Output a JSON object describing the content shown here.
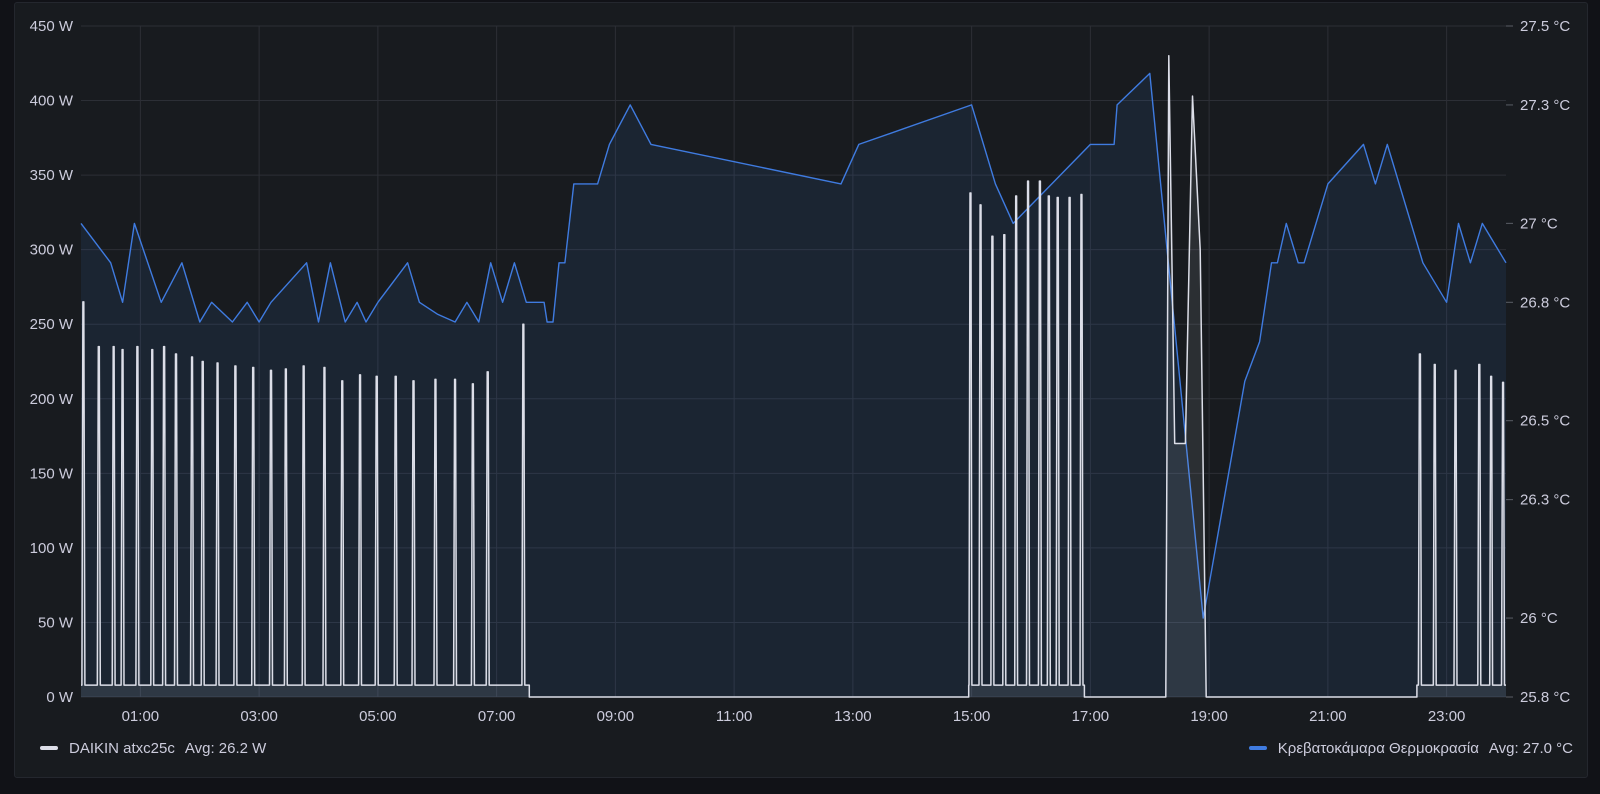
{
  "chart_data": {
    "type": "line",
    "x_axis": {
      "min": "00:00",
      "max": "24:00",
      "ticks": [
        "01:00",
        "03:00",
        "05:00",
        "07:00",
        "09:00",
        "11:00",
        "13:00",
        "15:00",
        "17:00",
        "19:00",
        "21:00",
        "23:00"
      ]
    },
    "y_left": {
      "unit": "W",
      "min": 0,
      "max": 450,
      "ticks": [
        "0 W",
        "50 W",
        "100 W",
        "150 W",
        "200 W",
        "250 W",
        "300 W",
        "350 W",
        "400 W",
        "450 W"
      ]
    },
    "y_right": {
      "unit": "°C",
      "min": 25.8,
      "max": 27.5,
      "ticks": [
        "25.8 °C",
        "26 °C",
        "26.3 °C",
        "26.5 °C",
        "26.8 °C",
        "27 °C",
        "27.3 °C",
        "27.5 °C"
      ]
    },
    "grid": true,
    "series": [
      {
        "name": "DAIKIN atxc25c",
        "axis": "left",
        "color": "#dcdee8",
        "style": "cycling",
        "baseline": 8,
        "segments": [
          {
            "start": 0.0,
            "end": 7.55,
            "idle": 8,
            "peaks": [
              [
                0.04,
                265
              ],
              [
                0.3,
                235
              ],
              [
                0.55,
                235
              ],
              [
                0.7,
                233
              ],
              [
                0.95,
                235
              ],
              [
                1.2,
                233
              ],
              [
                1.4,
                235
              ],
              [
                1.6,
                230
              ],
              [
                1.87,
                228
              ],
              [
                2.05,
                225
              ],
              [
                2.3,
                224
              ],
              [
                2.6,
                222
              ],
              [
                2.9,
                221
              ],
              [
                3.2,
                219
              ],
              [
                3.45,
                220
              ],
              [
                3.75,
                222
              ],
              [
                4.1,
                221
              ],
              [
                4.4,
                212
              ],
              [
                4.7,
                216
              ],
              [
                4.98,
                215
              ],
              [
                5.3,
                215
              ],
              [
                5.6,
                212
              ],
              [
                5.97,
                213
              ],
              [
                6.3,
                213
              ],
              [
                6.6,
                210
              ],
              [
                6.85,
                218
              ],
              [
                7.45,
                250
              ]
            ]
          },
          {
            "start": 7.55,
            "end": 14.95,
            "idle": 0,
            "peaks": []
          },
          {
            "start": 14.95,
            "end": 16.9,
            "idle": 8,
            "peaks": [
              [
                14.98,
                338
              ],
              [
                15.15,
                330
              ],
              [
                15.35,
                309
              ],
              [
                15.55,
                310
              ],
              [
                15.75,
                336
              ],
              [
                15.95,
                346
              ],
              [
                16.15,
                346
              ],
              [
                16.3,
                336
              ],
              [
                16.45,
                335
              ],
              [
                16.65,
                335
              ],
              [
                16.85,
                337
              ]
            ]
          },
          {
            "start": 16.9,
            "end": 18.27,
            "idle": 0,
            "peaks": []
          },
          {
            "start": 18.27,
            "end": 19.0,
            "idle": 0,
            "spikes": [
              [
                18.32,
                430
              ],
              [
                18.42,
                170
              ],
              [
                18.5,
                170
              ],
              [
                18.55,
                170
              ],
              [
                18.6,
                170
              ],
              [
                18.72,
                403
              ],
              [
                18.85,
                300
              ],
              [
                18.95,
                0
              ]
            ]
          },
          {
            "start": 19.0,
            "end": 22.5,
            "idle": 0,
            "peaks": []
          },
          {
            "start": 22.5,
            "end": 24.0,
            "idle": 8,
            "peaks": [
              [
                22.55,
                230
              ],
              [
                22.8,
                223
              ],
              [
                23.15,
                219
              ],
              [
                23.55,
                223
              ],
              [
                23.75,
                215
              ],
              [
                23.95,
                211
              ]
            ]
          }
        ]
      },
      {
        "name": "Κρεβατοκάμαρα Θερμοκρασία",
        "axis": "right",
        "color": "#3f7be0",
        "points": [
          [
            0.0,
            27.0
          ],
          [
            0.5,
            26.9
          ],
          [
            0.7,
            26.8
          ],
          [
            0.9,
            27.0
          ],
          [
            1.35,
            26.8
          ],
          [
            1.7,
            26.9
          ],
          [
            2.0,
            26.75
          ],
          [
            2.2,
            26.8
          ],
          [
            2.55,
            26.75
          ],
          [
            2.8,
            26.8
          ],
          [
            3.0,
            26.75
          ],
          [
            3.2,
            26.8
          ],
          [
            3.8,
            26.9
          ],
          [
            4.0,
            26.75
          ],
          [
            4.2,
            26.9
          ],
          [
            4.45,
            26.75
          ],
          [
            4.65,
            26.8
          ],
          [
            4.8,
            26.75
          ],
          [
            5.0,
            26.8
          ],
          [
            5.5,
            26.9
          ],
          [
            5.7,
            26.8
          ],
          [
            6.0,
            26.77
          ],
          [
            6.3,
            26.75
          ],
          [
            6.5,
            26.8
          ],
          [
            6.7,
            26.75
          ],
          [
            6.9,
            26.9
          ],
          [
            7.1,
            26.8
          ],
          [
            7.3,
            26.9
          ],
          [
            7.5,
            26.8
          ],
          [
            7.8,
            26.8
          ],
          [
            7.85,
            26.75
          ],
          [
            7.95,
            26.75
          ],
          [
            8.05,
            26.9
          ],
          [
            8.15,
            26.9
          ],
          [
            8.3,
            27.1
          ],
          [
            8.7,
            27.1
          ],
          [
            8.9,
            27.2
          ],
          [
            9.25,
            27.3
          ],
          [
            9.6,
            27.2
          ],
          [
            12.8,
            27.1
          ],
          [
            13.1,
            27.2
          ],
          [
            15.0,
            27.3
          ],
          [
            15.4,
            27.1
          ],
          [
            15.7,
            27.0
          ],
          [
            17.0,
            27.2
          ],
          [
            17.4,
            27.2
          ],
          [
            17.45,
            27.3
          ],
          [
            18.0,
            27.38
          ],
          [
            18.9,
            26.0
          ],
          [
            19.6,
            26.6
          ],
          [
            19.85,
            26.7
          ],
          [
            20.05,
            26.9
          ],
          [
            20.15,
            26.9
          ],
          [
            20.3,
            27.0
          ],
          [
            20.5,
            26.9
          ],
          [
            20.6,
            26.9
          ],
          [
            20.8,
            27.0
          ],
          [
            21.0,
            27.1
          ],
          [
            21.6,
            27.2
          ],
          [
            21.8,
            27.1
          ],
          [
            22.0,
            27.2
          ],
          [
            22.6,
            26.9
          ],
          [
            23.0,
            26.8
          ],
          [
            23.2,
            27.0
          ],
          [
            23.4,
            26.9
          ],
          [
            23.6,
            27.0
          ],
          [
            24.0,
            26.9
          ]
        ]
      }
    ]
  },
  "legend": {
    "left": {
      "label": "DAIKIN atxc25c",
      "avg": "Avg: 26.2 W",
      "color": "#dcdee8"
    },
    "right": {
      "label": "Κρεβατοκάμαρα Θερμοκρασία",
      "avg": "Avg: 27.0 °C",
      "color": "#3f7be0"
    }
  }
}
